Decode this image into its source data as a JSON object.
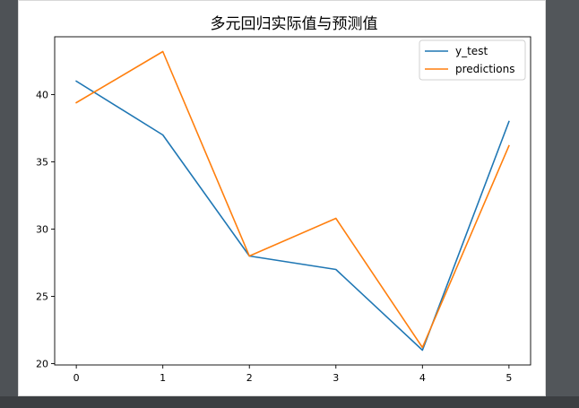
{
  "chart_data": {
    "type": "line",
    "title": "多元回归实际值与预测值",
    "xlabel": "",
    "ylabel": "",
    "x": [
      0,
      1,
      2,
      3,
      4,
      5
    ],
    "xlim": [
      -0.25,
      5.25
    ],
    "ylim": [
      19.9,
      44.3
    ],
    "x_ticks": [
      0,
      1,
      2,
      3,
      4,
      5
    ],
    "y_ticks": [
      20,
      25,
      30,
      35,
      40
    ],
    "grid": false,
    "legend_position": "upper right",
    "series": [
      {
        "name": "y_test",
        "color": "#1f77b4",
        "values": [
          41.0,
          37.0,
          28.0,
          27.0,
          21.0,
          38.0
        ]
      },
      {
        "name": "predictions",
        "color": "#ff7f0e",
        "values": [
          39.4,
          43.2,
          28.0,
          30.8,
          21.2,
          36.2
        ]
      }
    ]
  }
}
